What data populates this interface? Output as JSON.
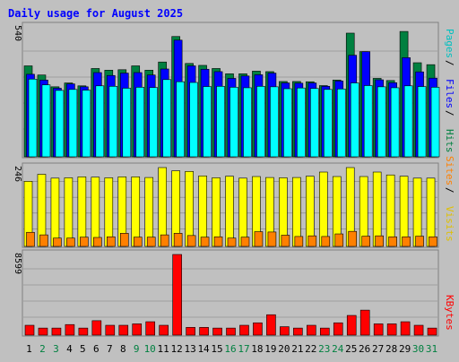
{
  "chart_data": {
    "type": "bar",
    "title": "Daily usage for August 2025",
    "categories": [
      "1",
      "2",
      "3",
      "4",
      "5",
      "6",
      "7",
      "8",
      "9",
      "10",
      "11",
      "12",
      "13",
      "14",
      "15",
      "16",
      "17",
      "18",
      "19",
      "20",
      "21",
      "22",
      "23",
      "24",
      "25",
      "26",
      "27",
      "28",
      "29",
      "30",
      "31"
    ],
    "weekend_days": [
      "2",
      "3",
      "9",
      "10",
      "16",
      "17",
      "23",
      "24",
      "30",
      "31"
    ],
    "panels": [
      {
        "name": "hits-files-pages",
        "ymax_label": "540",
        "ymax": 540,
        "legend": [
          "Pages",
          "Files",
          "Hits"
        ],
        "series": [
          {
            "name": "Hits",
            "color": "#008040",
            "values": [
              378,
              340,
              291,
              307,
              295,
              367,
              360,
              362,
              378,
              360,
              394,
              500,
              388,
              380,
              367,
              345,
              345,
              356,
              354,
              313,
              313,
              312,
              296,
              319,
              514,
              437,
              326,
              317,
              521,
              391,
              383
            ]
          },
          {
            "name": "Files",
            "color": "#0000ff",
            "values": [
              343,
              319,
              285,
              303,
              291,
              350,
              338,
              348,
              350,
              340,
              365,
              485,
              378,
              364,
              354,
              326,
              336,
              341,
              348,
              307,
              306,
              307,
              293,
              315,
              422,
              437,
              320,
              308,
              412,
              353,
              327
            ]
          },
          {
            "name": "Pages",
            "color": "#00ffff",
            "values": [
              323,
              299,
              276,
              280,
              277,
              295,
              293,
              285,
              289,
              288,
              321,
              312,
              309,
              292,
              293,
              289,
              287,
              293,
              291,
              283,
              286,
              284,
              280,
              282,
              307,
              296,
              291,
              287,
              295,
              292,
              289
            ]
          }
        ]
      },
      {
        "name": "visits-sites",
        "ymax_label": "246",
        "ymax": 246,
        "legend": [
          "Sites",
          "Visits"
        ],
        "series": [
          {
            "name": "Visits",
            "color": "#ffff00",
            "values": [
              203,
              225,
              213,
              214,
              217,
              216,
              214,
              217,
              217,
              215,
              246,
              236,
              234,
              220,
              214,
              219,
              213,
              218,
              215,
              214,
              215,
              219,
              232,
              218,
              246,
              218,
              232,
              223,
              219,
              213,
              213
            ]
          },
          {
            "name": "Sites",
            "color": "#ff8000",
            "values": [
              44,
              36,
              26,
              26,
              29,
              28,
              30,
              41,
              29,
              29,
              36,
              41,
              34,
              29,
              30,
              26,
              29,
              46,
              45,
              35,
              31,
              33,
              31,
              39,
              47,
              32,
              33,
              30,
              30,
              32,
              30
            ]
          }
        ]
      },
      {
        "name": "kbytes",
        "ymax_label": "8599",
        "ymax": 8599,
        "legend": [
          "KBytes"
        ],
        "series": [
          {
            "name": "KBytes",
            "color": "#ff0000",
            "values": [
              1050,
              752,
              752,
              1126,
              752,
              1540,
              1050,
              1050,
              1201,
              1428,
              1050,
              8599,
              826,
              826,
              752,
              752,
              1050,
              1313,
              2175,
              899,
              752,
              1050,
              752,
              1313,
              2100,
              2664,
              1201,
              1201,
              1428,
              1050,
              752
            ]
          }
        ]
      }
    ]
  }
}
